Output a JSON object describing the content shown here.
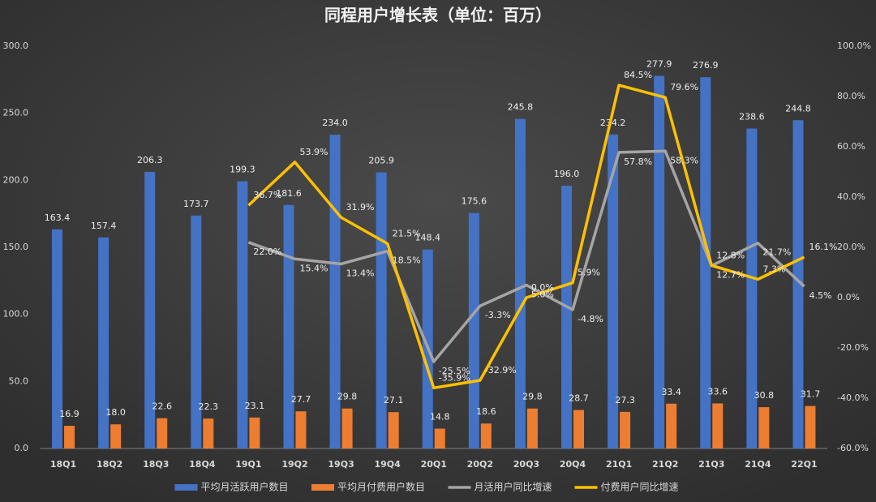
{
  "chart_data": {
    "type": "bar+line",
    "title": "同程用户增长表（单位：百万）",
    "categories": [
      "18Q1",
      "18Q2",
      "18Q3",
      "18Q4",
      "19Q1",
      "19Q2",
      "19Q3",
      "19Q4",
      "20Q1",
      "20Q2",
      "20Q3",
      "20Q4",
      "21Q1",
      "21Q2",
      "21Q3",
      "21Q4",
      "22Q1"
    ],
    "series": [
      {
        "name": "平均月活跃用户数目",
        "type": "bar",
        "color": "#4472c4",
        "values": [
          163.4,
          157.4,
          206.3,
          173.7,
          199.3,
          181.6,
          234.0,
          205.9,
          148.4,
          175.6,
          245.8,
          196.0,
          234.2,
          277.9,
          276.9,
          238.6,
          244.8
        ],
        "value_labels": [
          "163.4",
          "157.4",
          "206.3",
          "173.7",
          "199.3",
          "181.6",
          "234.0",
          "205.9",
          "148.4",
          "175.6",
          "245.8",
          "196.0",
          "234.2",
          "277.9",
          "276.9",
          "238.6",
          "244.8"
        ]
      },
      {
        "name": "平均月付费用户数目",
        "type": "bar",
        "color": "#ed7d31",
        "values": [
          16.9,
          18.0,
          22.6,
          22.3,
          23.1,
          27.7,
          29.8,
          27.1,
          14.8,
          18.6,
          29.8,
          28.7,
          27.3,
          33.4,
          33.6,
          30.8,
          31.7
        ],
        "value_labels": [
          "16.9",
          "18.0",
          "22.6",
          "22.3",
          "23.1",
          "27.7",
          "29.8",
          "27.1",
          "14.8",
          "18.6",
          "29.8",
          "28.7",
          "27.3",
          "33.4",
          "33.6",
          "30.8",
          "31.7"
        ]
      },
      {
        "name": "月活用户同比增速",
        "type": "line",
        "axis": "y2",
        "color": "#a5a5a5",
        "values": [
          null,
          null,
          null,
          null,
          22.0,
          15.4,
          13.4,
          18.5,
          -25.5,
          -3.3,
          5.0,
          -4.8,
          57.8,
          58.3,
          12.7,
          21.7,
          4.5
        ],
        "value_labels": [
          null,
          null,
          null,
          null,
          "22.0%",
          "15.4%",
          "13.4%",
          "18.5%",
          "-25.5%",
          "-3.3%",
          "5.0%",
          "-4.8%",
          "57.8%",
          "58.3%",
          "12.7%",
          "21.7%",
          "4.5%"
        ]
      },
      {
        "name": "付费用户同比增速",
        "type": "line",
        "axis": "y2",
        "color": "#ffc000",
        "values": [
          null,
          null,
          null,
          null,
          36.7,
          53.9,
          31.9,
          21.5,
          -35.9,
          -32.9,
          0.0,
          5.9,
          84.5,
          79.6,
          12.8,
          7.3,
          16.1
        ],
        "value_labels": [
          null,
          null,
          null,
          null,
          "36.7%",
          "53.9%",
          "31.9%",
          "21.5%",
          "-35.9%",
          "-32.9%",
          "0.0%",
          "5.9%",
          "84.5%",
          "79.6%",
          "12.8%",
          "7.3%",
          "16.1%"
        ]
      }
    ],
    "ylim": [
      0,
      300
    ],
    "yticks": [
      {
        "value": 0,
        "label": "0.0"
      },
      {
        "value": 50,
        "label": "50.0"
      },
      {
        "value": 100,
        "label": "100.0"
      },
      {
        "value": 150,
        "label": "150.0"
      },
      {
        "value": 200,
        "label": "200.0"
      },
      {
        "value": 250,
        "label": "250.0"
      },
      {
        "value": 300,
        "label": "300.0"
      }
    ],
    "y2lim": [
      -60,
      100
    ],
    "y2ticks": [
      {
        "value": -60,
        "label": "-60.0%"
      },
      {
        "value": -40,
        "label": "-40.0%"
      },
      {
        "value": -20,
        "label": "-20.0%"
      },
      {
        "value": 0,
        "label": "0.0%"
      },
      {
        "value": 20,
        "label": "20.0%"
      },
      {
        "value": 40,
        "label": "40.0%"
      },
      {
        "value": 60,
        "label": "60.0%"
      },
      {
        "value": 80,
        "label": "80.0%"
      },
      {
        "value": 100,
        "label": "100.0%"
      }
    ],
    "legend": "bottom"
  }
}
